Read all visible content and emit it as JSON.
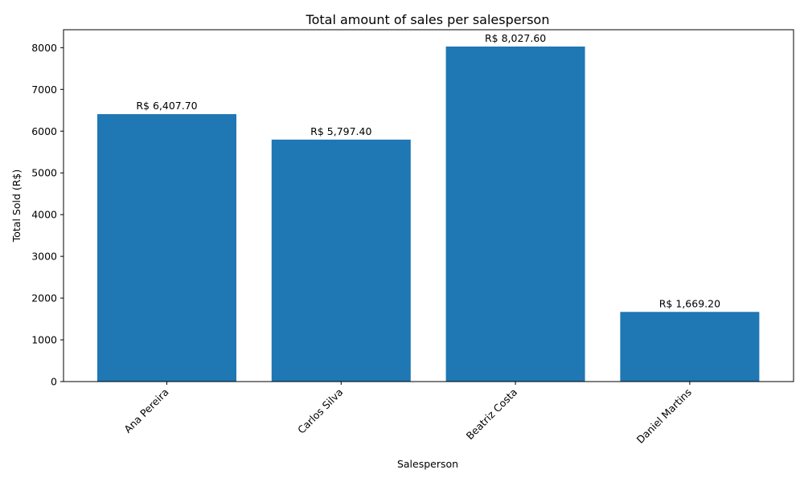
{
  "chart_data": {
    "type": "bar",
    "title": "Total amount of sales per salesperson",
    "xlabel": "Salesperson",
    "ylabel": "Total Sold (R$)",
    "categories": [
      "Ana Pereira",
      "Carlos Silva",
      "Beatriz Costa",
      "Daniel Martins"
    ],
    "values": [
      6407.7,
      5797.4,
      8027.6,
      1669.2
    ],
    "data_labels": [
      "R$ 6,407.70",
      "R$ 5,797.40",
      "R$ 8,027.60",
      "R$ 1,669.20"
    ],
    "ylim": [
      0,
      8430
    ],
    "yticks": [
      0,
      1000,
      2000,
      3000,
      4000,
      5000,
      6000,
      7000,
      8000
    ],
    "ytick_labels": [
      "0",
      "1000",
      "2000",
      "3000",
      "4000",
      "5000",
      "6000",
      "7000",
      "8000"
    ],
    "xtick_rotation_deg": 45,
    "grid": false,
    "legend": "none",
    "bar_color": "#1f77b4"
  }
}
